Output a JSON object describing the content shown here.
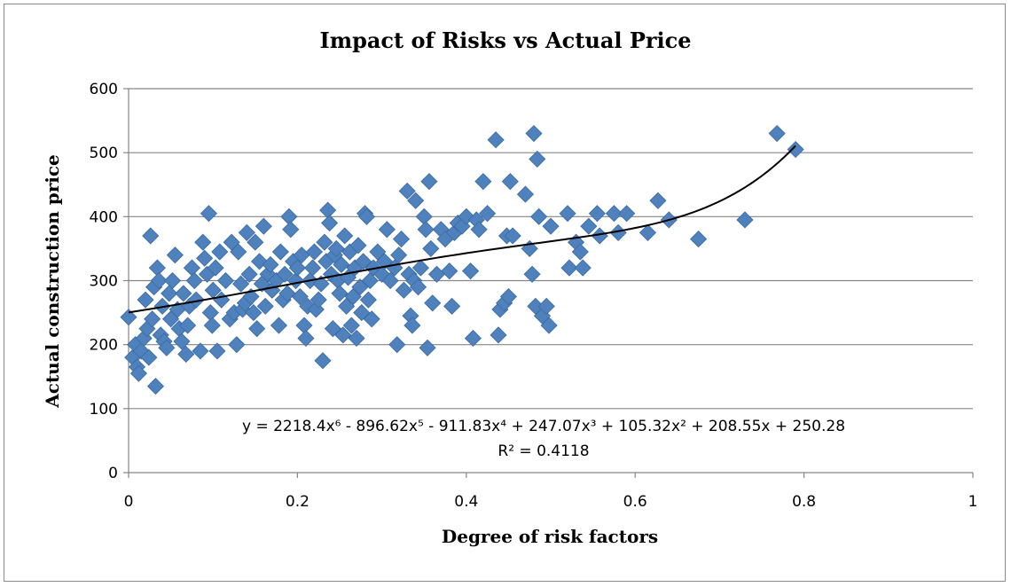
{
  "chart_data": {
    "type": "scatter",
    "title": "Impact of Risks vs Actual Price",
    "xlabel": "Degree of risk factors",
    "ylabel": "Actual construction price",
    "xlim": [
      0,
      1
    ],
    "ylim": [
      0,
      600
    ],
    "xticks": [
      "0",
      "0.2",
      "0.4",
      "0.6",
      "0.8",
      "1"
    ],
    "yticks": [
      "0",
      "100",
      "200",
      "300",
      "400",
      "500",
      "600"
    ],
    "grid": "horizontal",
    "marker": "diamond",
    "colors": {
      "marker": "#4f81bd",
      "marker_edge": "#3a6aa3",
      "trendline": "#000000",
      "grid": "#868686"
    },
    "trendline": {
      "type": "polynomial",
      "order": 6,
      "coefficients": [
        250.28,
        208.55,
        105.32,
        247.07,
        -911.83,
        -896.62,
        2218.4
      ],
      "x_range": [
        0,
        0.79
      ],
      "equation": "y = 2218.4x⁶ - 896.62x⁵ - 911.83x⁴ + 247.07x³ + 105.32x² + 208.55x + 250.28",
      "r_squared": "R² = 0.4118"
    },
    "points": [
      [
        0.0,
        243
      ],
      [
        0.005,
        180
      ],
      [
        0.008,
        200
      ],
      [
        0.01,
        165
      ],
      [
        0.012,
        155
      ],
      [
        0.015,
        190
      ],
      [
        0.018,
        210
      ],
      [
        0.02,
        270
      ],
      [
        0.022,
        225
      ],
      [
        0.024,
        180
      ],
      [
        0.026,
        370
      ],
      [
        0.028,
        240
      ],
      [
        0.03,
        290
      ],
      [
        0.032,
        135
      ],
      [
        0.034,
        320
      ],
      [
        0.036,
        300
      ],
      [
        0.038,
        215
      ],
      [
        0.04,
        260
      ],
      [
        0.042,
        205
      ],
      [
        0.045,
        195
      ],
      [
        0.048,
        280
      ],
      [
        0.05,
        240
      ],
      [
        0.052,
        300
      ],
      [
        0.055,
        340
      ],
      [
        0.058,
        255
      ],
      [
        0.06,
        225
      ],
      [
        0.063,
        205
      ],
      [
        0.065,
        280
      ],
      [
        0.068,
        185
      ],
      [
        0.07,
        230
      ],
      [
        0.072,
        260
      ],
      [
        0.075,
        320
      ],
      [
        0.078,
        300
      ],
      [
        0.08,
        270
      ],
      [
        0.085,
        190
      ],
      [
        0.088,
        360
      ],
      [
        0.09,
        335
      ],
      [
        0.093,
        310
      ],
      [
        0.095,
        405
      ],
      [
        0.097,
        250
      ],
      [
        0.099,
        230
      ],
      [
        0.1,
        285
      ],
      [
        0.103,
        320
      ],
      [
        0.105,
        190
      ],
      [
        0.108,
        345
      ],
      [
        0.11,
        270
      ],
      [
        0.115,
        300
      ],
      [
        0.12,
        240
      ],
      [
        0.122,
        360
      ],
      [
        0.125,
        250
      ],
      [
        0.128,
        200
      ],
      [
        0.13,
        345
      ],
      [
        0.133,
        295
      ],
      [
        0.135,
        255
      ],
      [
        0.138,
        265
      ],
      [
        0.14,
        375
      ],
      [
        0.143,
        310
      ],
      [
        0.145,
        275
      ],
      [
        0.148,
        250
      ],
      [
        0.15,
        360
      ],
      [
        0.152,
        225
      ],
      [
        0.155,
        330
      ],
      [
        0.158,
        295
      ],
      [
        0.16,
        385
      ],
      [
        0.162,
        260
      ],
      [
        0.165,
        310
      ],
      [
        0.168,
        325
      ],
      [
        0.17,
        285
      ],
      [
        0.175,
        300
      ],
      [
        0.178,
        230
      ],
      [
        0.18,
        345
      ],
      [
        0.183,
        270
      ],
      [
        0.185,
        310
      ],
      [
        0.188,
        280
      ],
      [
        0.19,
        400
      ],
      [
        0.192,
        380
      ],
      [
        0.195,
        330
      ],
      [
        0.198,
        300
      ],
      [
        0.2,
        320
      ],
      [
        0.203,
        275
      ],
      [
        0.205,
        340
      ],
      [
        0.208,
        230
      ],
      [
        0.21,
        210
      ],
      [
        0.212,
        260
      ],
      [
        0.215,
        300
      ],
      [
        0.218,
        320
      ],
      [
        0.22,
        345
      ],
      [
        0.222,
        255
      ],
      [
        0.225,
        270
      ],
      [
        0.228,
        295
      ],
      [
        0.23,
        175
      ],
      [
        0.232,
        360
      ],
      [
        0.234,
        330
      ],
      [
        0.236,
        410
      ],
      [
        0.238,
        390
      ],
      [
        0.24,
        310
      ],
      [
        0.242,
        225
      ],
      [
        0.244,
        340
      ],
      [
        0.246,
        350
      ],
      [
        0.248,
        300
      ],
      [
        0.25,
        280
      ],
      [
        0.252,
        325
      ],
      [
        0.254,
        215
      ],
      [
        0.256,
        370
      ],
      [
        0.258,
        260
      ],
      [
        0.26,
        305
      ],
      [
        0.262,
        345
      ],
      [
        0.264,
        230
      ],
      [
        0.266,
        275
      ],
      [
        0.268,
        320
      ],
      [
        0.27,
        210
      ],
      [
        0.272,
        355
      ],
      [
        0.274,
        290
      ],
      [
        0.276,
        250
      ],
      [
        0.278,
        330
      ],
      [
        0.28,
        405
      ],
      [
        0.282,
        400
      ],
      [
        0.284,
        270
      ],
      [
        0.286,
        300
      ],
      [
        0.288,
        240
      ],
      [
        0.29,
        320
      ],
      [
        0.295,
        345
      ],
      [
        0.3,
        310
      ],
      [
        0.303,
        330
      ],
      [
        0.306,
        380
      ],
      [
        0.31,
        300
      ],
      [
        0.315,
        320
      ],
      [
        0.318,
        200
      ],
      [
        0.32,
        340
      ],
      [
        0.323,
        365
      ],
      [
        0.326,
        285
      ],
      [
        0.33,
        440
      ],
      [
        0.332,
        310
      ],
      [
        0.334,
        245
      ],
      [
        0.336,
        230
      ],
      [
        0.338,
        300
      ],
      [
        0.34,
        425
      ],
      [
        0.343,
        290
      ],
      [
        0.346,
        320
      ],
      [
        0.35,
        400
      ],
      [
        0.352,
        380
      ],
      [
        0.354,
        195
      ],
      [
        0.356,
        455
      ],
      [
        0.358,
        350
      ],
      [
        0.36,
        265
      ],
      [
        0.365,
        310
      ],
      [
        0.37,
        380
      ],
      [
        0.375,
        365
      ],
      [
        0.38,
        315
      ],
      [
        0.383,
        260
      ],
      [
        0.386,
        375
      ],
      [
        0.39,
        390
      ],
      [
        0.395,
        385
      ],
      [
        0.4,
        400
      ],
      [
        0.405,
        315
      ],
      [
        0.408,
        210
      ],
      [
        0.412,
        395
      ],
      [
        0.415,
        380
      ],
      [
        0.42,
        455
      ],
      [
        0.425,
        405
      ],
      [
        0.435,
        520
      ],
      [
        0.438,
        215
      ],
      [
        0.44,
        255
      ],
      [
        0.445,
        265
      ],
      [
        0.448,
        370
      ],
      [
        0.45,
        275
      ],
      [
        0.452,
        455
      ],
      [
        0.455,
        370
      ],
      [
        0.47,
        435
      ],
      [
        0.475,
        350
      ],
      [
        0.478,
        310
      ],
      [
        0.48,
        530
      ],
      [
        0.482,
        260
      ],
      [
        0.484,
        490
      ],
      [
        0.486,
        400
      ],
      [
        0.49,
        245
      ],
      [
        0.495,
        260
      ],
      [
        0.498,
        230
      ],
      [
        0.5,
        385
      ],
      [
        0.52,
        405
      ],
      [
        0.522,
        320
      ],
      [
        0.53,
        360
      ],
      [
        0.535,
        345
      ],
      [
        0.538,
        320
      ],
      [
        0.545,
        385
      ],
      [
        0.555,
        405
      ],
      [
        0.558,
        370
      ],
      [
        0.575,
        405
      ],
      [
        0.58,
        375
      ],
      [
        0.59,
        405
      ],
      [
        0.615,
        375
      ],
      [
        0.627,
        425
      ],
      [
        0.64,
        395
      ],
      [
        0.675,
        365
      ],
      [
        0.73,
        395
      ],
      [
        0.768,
        530
      ],
      [
        0.79,
        505
      ]
    ]
  }
}
